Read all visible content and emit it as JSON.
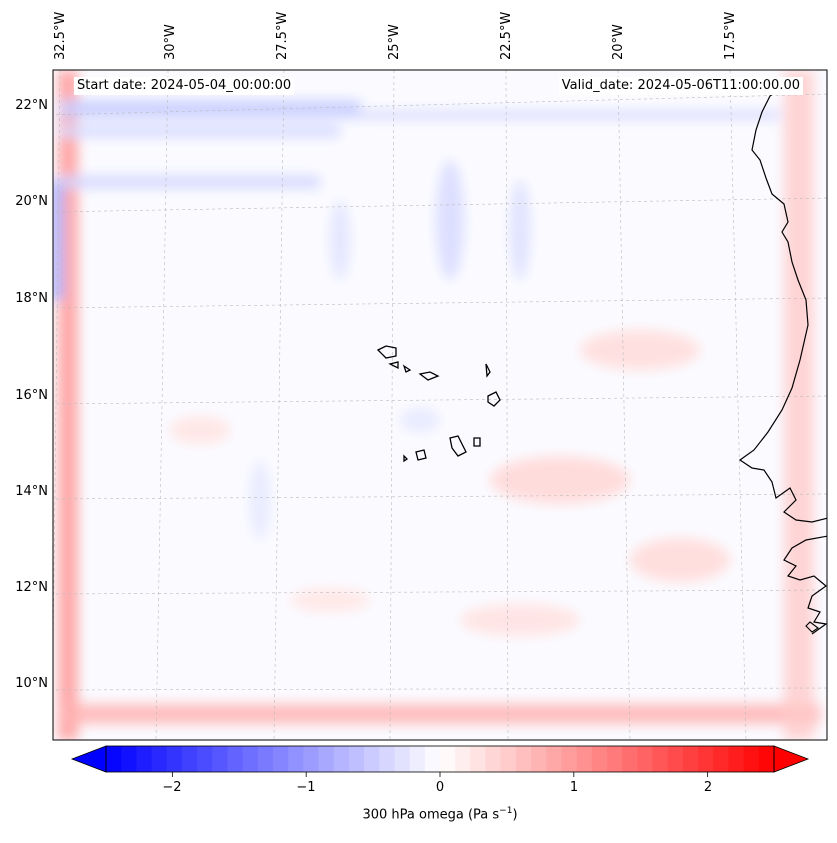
{
  "map": {
    "start_date": "Start date: 2024-05-04_00:00:00",
    "valid_date": "Valid_date: 2024-05-06T11:00:00.00",
    "lon_labels": [
      "32.5°W",
      "30°W",
      "27.5°W",
      "25°W",
      "22.5°W",
      "20°W",
      "17.5°W"
    ],
    "lat_labels": [
      "22°N",
      "20°N",
      "18°N",
      "16°N",
      "14°N",
      "12°N",
      "10°N"
    ]
  },
  "colorbar": {
    "label_prefix": "300 hPa omega (Pa s",
    "label_exp": "−1",
    "label_suffix": ")",
    "ticks": [
      "−2",
      "−1",
      "0",
      "1",
      "2"
    ],
    "tick_values": [
      -2,
      -1,
      0,
      1,
      2
    ],
    "min": -2.75,
    "max": 2.75,
    "colors": {
      "neg": "#0000ff",
      "mid": "#ffffff",
      "pos": "#ff0000"
    }
  },
  "colors": {
    "coast": "#000000",
    "grid": "#bbbbbb"
  }
}
